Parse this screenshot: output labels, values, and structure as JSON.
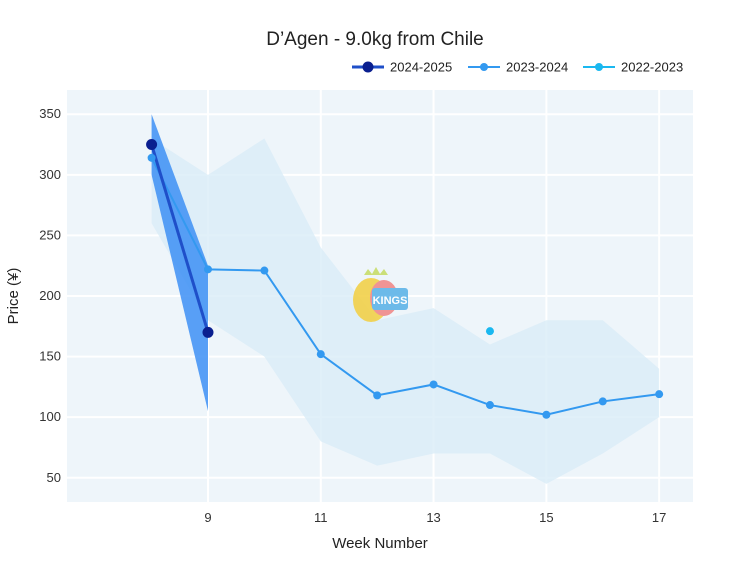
{
  "chart_data": {
    "type": "line",
    "title": "D’Agen - 9.0kg from Chile",
    "xlabel": "Week Number",
    "ylabel": "Price (¥)",
    "xlim": [
      6.5,
      17.6
    ],
    "ylim": [
      30,
      370
    ],
    "x_ticks": [
      9,
      11,
      13,
      15,
      17
    ],
    "y_ticks": [
      50,
      100,
      150,
      200,
      250,
      300,
      350
    ],
    "legend_position": "top-right",
    "series": [
      {
        "name": "2024-2025",
        "color": "#0a1f8f",
        "line_color": "#1f4fc9",
        "x": [
          8,
          9
        ],
        "values": [
          325,
          170
        ],
        "band": {
          "x": [
            8,
            9
          ],
          "upper": [
            350,
            225
          ],
          "lower": [
            300,
            105
          ],
          "color": "#3d8ff5"
        }
      },
      {
        "name": "2023-2024",
        "color": "#3399f0",
        "x": [
          8,
          9,
          10,
          11,
          12,
          13,
          14,
          15,
          16,
          17
        ],
        "values": [
          314,
          222,
          221,
          152,
          118,
          127,
          110,
          102,
          113,
          119
        ],
        "band": {
          "x": [
            8,
            9,
            10,
            11,
            12,
            13,
            14,
            15,
            16,
            17
          ],
          "upper": [
            330,
            300,
            330,
            240,
            180,
            190,
            160,
            180,
            180,
            140
          ],
          "lower": [
            260,
            180,
            150,
            80,
            60,
            70,
            70,
            45,
            70,
            100
          ],
          "color": "#d9ecf7"
        }
      },
      {
        "name": "2022-2023",
        "color": "#1ab8f0",
        "x": [
          14
        ],
        "values": [
          171
        ]
      }
    ]
  },
  "watermark": {
    "text": "KINGS"
  }
}
